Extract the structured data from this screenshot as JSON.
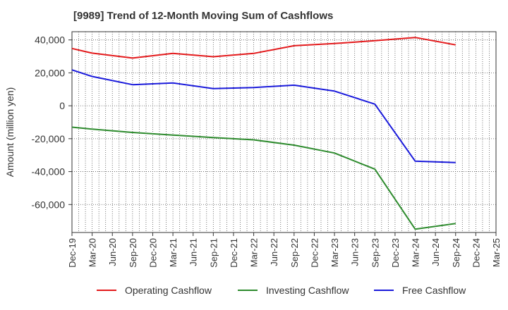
{
  "chart_data": {
    "type": "line",
    "title": "[9989]  Trend of 12-Month Moving Sum of Cashflows",
    "xlabel": "",
    "ylabel": "Amount (million yen)",
    "categories": [
      "Dec-19",
      "Mar-20",
      "Jun-20",
      "Sep-20",
      "Dec-20",
      "Mar-21",
      "Jun-21",
      "Sep-21",
      "Dec-21",
      "Mar-22",
      "Jun-22",
      "Sep-22",
      "Dec-22",
      "Mar-23",
      "Jun-23",
      "Sep-23",
      "Dec-23",
      "Mar-24",
      "Jun-24",
      "Sep-24",
      "Dec-24",
      "Mar-25"
    ],
    "ylim": [
      -77000,
      45000
    ],
    "yticks": [
      40000,
      20000,
      0,
      -20000,
      -40000,
      -60000
    ],
    "ytick_labels": [
      "40,000",
      "20,000",
      "0",
      "-20,000",
      "-40,000",
      "-60,000"
    ],
    "grid": true,
    "legend_position": "bottom",
    "series": [
      {
        "name": "Operating Cashflow",
        "color": "#e31a1c",
        "values": [
          34800,
          32000,
          null,
          29000,
          null,
          31800,
          null,
          29800,
          null,
          31800,
          null,
          36500,
          null,
          37800,
          null,
          39500,
          null,
          41500,
          null,
          37000,
          null,
          null
        ]
      },
      {
        "name": "Investing Cashflow",
        "color": "#2e8b2e",
        "values": [
          -13000,
          -14200,
          null,
          -16200,
          null,
          -17800,
          null,
          -19300,
          null,
          -20700,
          null,
          -23900,
          null,
          -28700,
          null,
          -38500,
          null,
          -75000,
          null,
          -71500,
          null,
          null
        ]
      },
      {
        "name": "Free Cashflow",
        "color": "#1a1adb",
        "values": [
          21800,
          17800,
          null,
          12800,
          null,
          13900,
          null,
          10400,
          null,
          11100,
          null,
          12500,
          null,
          8900,
          null,
          1000,
          null,
          -33700,
          null,
          -34500,
          null,
          null
        ]
      }
    ]
  }
}
